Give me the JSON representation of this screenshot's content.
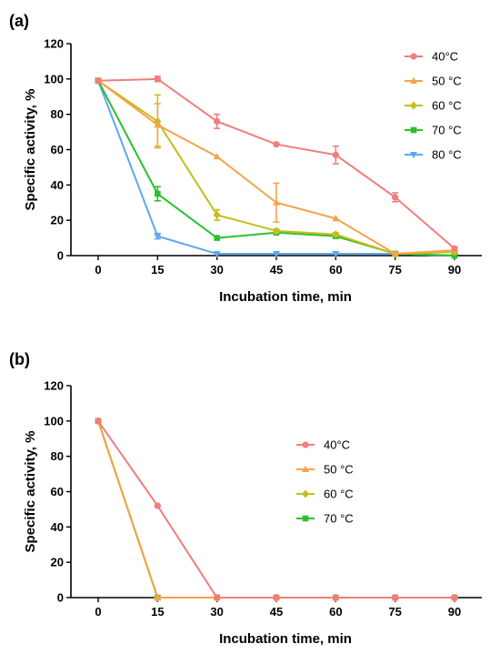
{
  "chart_data": [
    {
      "panel": "(a)",
      "type": "line",
      "x": [
        0,
        15,
        30,
        45,
        60,
        75,
        90
      ],
      "xlabel": "Incubation time, min",
      "ylabel": "Specific activity, %",
      "ylim": [
        0,
        120
      ],
      "yticks": [
        0,
        20,
        40,
        60,
        80,
        100,
        120
      ],
      "xticks": [
        0,
        15,
        30,
        45,
        60,
        75,
        90
      ],
      "legend_position": "top-right",
      "series": [
        {
          "name": "40°C",
          "color": "#F37C7C",
          "marker": "circle",
          "values": [
            99,
            100,
            76,
            63,
            57,
            33,
            4
          ],
          "errors": [
            0,
            1.5,
            4,
            0.5,
            5,
            2.5,
            1
          ]
        },
        {
          "name": "50 °C",
          "color": "#F7A24B",
          "marker": "triangle-up",
          "values": [
            99,
            74,
            56,
            30,
            21,
            1,
            3
          ],
          "errors": [
            0,
            12,
            0,
            11,
            0,
            0,
            0
          ]
        },
        {
          "name": "60 °C",
          "color": "#C5BE1E",
          "marker": "diamond",
          "values": [
            99,
            76,
            23,
            14,
            12,
            1,
            2
          ],
          "errors": [
            0,
            15,
            3,
            1,
            1,
            0,
            0
          ]
        },
        {
          "name": "70 °C",
          "color": "#2CC12C",
          "marker": "square",
          "values": [
            99,
            35,
            10,
            13,
            11,
            1,
            0
          ],
          "errors": [
            0,
            4,
            0,
            1,
            1,
            0,
            0
          ]
        },
        {
          "name": "80 °C",
          "color": "#5DA8F0",
          "marker": "triangle-down",
          "values": [
            99,
            11,
            1,
            1,
            1,
            1,
            0
          ],
          "errors": [
            0,
            1.5,
            0,
            0,
            0,
            0,
            0
          ]
        }
      ]
    },
    {
      "panel": "(b)",
      "type": "line",
      "x": [
        0,
        15,
        30,
        45,
        60,
        75,
        90
      ],
      "xlabel": "Incubation time, min",
      "ylabel": "Specific activity, %",
      "ylim": [
        0,
        120
      ],
      "yticks": [
        0,
        20,
        40,
        60,
        80,
        100,
        120
      ],
      "xticks": [
        0,
        15,
        30,
        45,
        60,
        75,
        90
      ],
      "legend_position": "center",
      "series": [
        {
          "name": "40°C",
          "color": "#F37C7C",
          "marker": "circle",
          "values": [
            100,
            52,
            0,
            0,
            0,
            0,
            0
          ],
          "errors": [
            0,
            0,
            0,
            0,
            0,
            0,
            0
          ]
        },
        {
          "name": "50 °C",
          "color": "#F7A24B",
          "marker": "triangle-up",
          "values": [
            100,
            0,
            0,
            0,
            0,
            0,
            0
          ],
          "errors": [
            0,
            0,
            0,
            0,
            0,
            0,
            0
          ]
        },
        {
          "name": "60 °C",
          "color": "#C5BE1E",
          "marker": "diamond",
          "values": [
            100,
            0,
            0,
            0,
            0,
            0,
            0
          ],
          "errors": [
            0,
            0,
            0,
            0,
            0,
            0,
            0
          ]
        },
        {
          "name": "70 °C",
          "color": "#2CC12C",
          "marker": "square",
          "values": [
            100,
            0,
            0,
            0,
            0,
            0,
            0
          ],
          "errors": [
            0,
            0,
            0,
            0,
            0,
            0,
            0
          ]
        }
      ]
    }
  ]
}
